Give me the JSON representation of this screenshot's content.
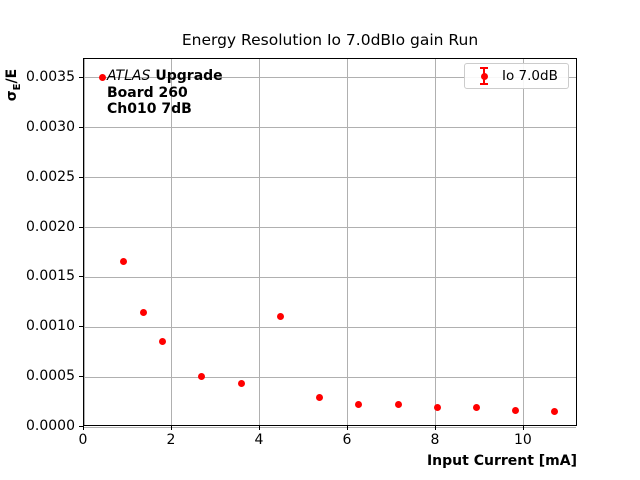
{
  "figure": {
    "background": "#ffffff"
  },
  "chart_data": {
    "type": "scatter",
    "title": "Energy Resolution Io 7.0dBIo gain Run",
    "xlabel": "Input Current [mA]",
    "ylabel": "σE/E",
    "ylabel_parts": {
      "sigma": "σ",
      "sub": "E",
      "rest": "/E"
    },
    "xlim": [
      0,
      11.23
    ],
    "ylim": [
      0,
      0.00369
    ],
    "xticks": [
      0,
      2,
      4,
      6,
      8,
      10
    ],
    "xtick_labels": [
      "0",
      "2",
      "4",
      "6",
      "8",
      "10"
    ],
    "yticks": [
      0.0,
      0.0005,
      0.001,
      0.0015,
      0.002,
      0.0025,
      0.003,
      0.0035
    ],
    "ytick_labels": [
      "0.0000",
      "0.0005",
      "0.0010",
      "0.0015",
      "0.0020",
      "0.0025",
      "0.0030",
      "0.0035"
    ],
    "grid": true,
    "grid_color": "#b0b0b0",
    "marker_color": "#ff0000",
    "legend": {
      "position": "upper right",
      "entries": [
        {
          "label": "Io 7.0dB",
          "color": "#ff0000",
          "marker": "errorbar-point"
        }
      ]
    },
    "annotation": {
      "brand": "ATLAS",
      "line1_rest": "Upgrade",
      "line2": "Board 260",
      "line3": "Ch010 7dB"
    },
    "series": [
      {
        "name": "Io 7.0dB",
        "color": "#ff0000",
        "marker": "circle",
        "points": [
          [
            0.43,
            0.0035
          ],
          [
            0.89,
            0.00166
          ],
          [
            1.35,
            0.00115
          ],
          [
            1.78,
            0.00086
          ],
          [
            2.68,
            0.00051
          ],
          [
            3.57,
            0.00044
          ],
          [
            4.47,
            0.00111
          ],
          [
            5.35,
            0.0003
          ],
          [
            6.25,
            0.00023
          ],
          [
            7.16,
            0.00023
          ],
          [
            8.03,
            0.0002
          ],
          [
            8.92,
            0.0002
          ],
          [
            9.8,
            0.00017
          ],
          [
            10.7,
            0.00016
          ]
        ]
      }
    ]
  }
}
